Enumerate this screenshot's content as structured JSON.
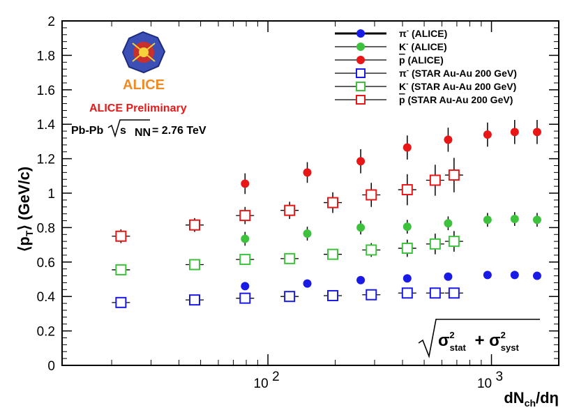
{
  "chart_data": {
    "type": "scatter",
    "title": "",
    "ylabel": "⟨p_T⟩ (GeV/c)",
    "xlabel": "dN_ch/dη",
    "xscale": "log",
    "xlim": [
      12,
      2000
    ],
    "ylim": [
      0,
      2
    ],
    "yticks": [
      0,
      0.2,
      0.4,
      0.6,
      0.8,
      1,
      1.2,
      1.4,
      1.6,
      1.8,
      2
    ],
    "ytick_labels": [
      "0",
      "0.2",
      "0.4",
      "0.6",
      "0.8",
      "1",
      "1.2",
      "1.4",
      "1.6",
      "1.8",
      "2"
    ],
    "xtick_labels": [
      {
        "value": 100,
        "base": "10",
        "exp": "2"
      },
      {
        "value": 1000,
        "base": "10",
        "exp": "3"
      }
    ],
    "series": [
      {
        "name": "π⁻ (ALICE)",
        "label_main": "π",
        "label_sup": "-",
        "label_rest": " (ALICE)",
        "marker": "filled-circle",
        "color": "#1a1ae6",
        "x": [
          79,
          150,
          260,
          420,
          640,
          960,
          1270,
          1600
        ],
        "y": [
          0.46,
          0.475,
          0.495,
          0.505,
          0.515,
          0.525,
          0.525,
          0.52
        ],
        "err": [
          0.02,
          0.02,
          0.02,
          0.02,
          0.02,
          0.02,
          0.02,
          0.02
        ]
      },
      {
        "name": "K⁻ (ALICE)",
        "label_main": "K",
        "label_sup": "-",
        "label_rest": " (ALICE)",
        "marker": "filled-circle",
        "color": "#3ec23e",
        "x": [
          79,
          150,
          260,
          420,
          640,
          960,
          1270,
          1600
        ],
        "y": [
          0.735,
          0.765,
          0.8,
          0.805,
          0.825,
          0.845,
          0.85,
          0.845
        ],
        "err": [
          0.04,
          0.04,
          0.04,
          0.04,
          0.04,
          0.04,
          0.04,
          0.04
        ]
      },
      {
        "name": "p̄ (ALICE)",
        "label_main": "p",
        "label_sup": "",
        "label_rest": " (ALICE)",
        "marker": "filled-circle",
        "color": "#e81616",
        "x": [
          79,
          150,
          260,
          420,
          640,
          960,
          1270,
          1600
        ],
        "y": [
          1.055,
          1.12,
          1.185,
          1.265,
          1.31,
          1.34,
          1.355,
          1.355
        ],
        "err": [
          0.06,
          0.06,
          0.07,
          0.07,
          0.07,
          0.07,
          0.07,
          0.07
        ]
      },
      {
        "name": "π⁻ (STAR Au-Au 200 GeV)",
        "label_main": "π",
        "label_sup": "-",
        "label_rest": " (STAR Au-Au 200 GeV)",
        "marker": "open-square",
        "color": "#1a1ae6",
        "x": [
          22,
          47,
          79,
          125,
          195,
          290,
          420,
          560,
          680
        ],
        "y": [
          0.365,
          0.38,
          0.39,
          0.4,
          0.405,
          0.41,
          0.42,
          0.42,
          0.42
        ],
        "err": [
          0.01,
          0.01,
          0.01,
          0.01,
          0.01,
          0.01,
          0.01,
          0.01,
          0.01
        ]
      },
      {
        "name": "K⁻ (STAR Au-Au 200 GeV)",
        "label_main": "K",
        "label_sup": "-",
        "label_rest": " (STAR Au-Au 200 GeV)",
        "marker": "open-square",
        "color": "#3ec23e",
        "x": [
          22,
          47,
          79,
          125,
          195,
          290,
          420,
          560,
          680
        ],
        "y": [
          0.555,
          0.585,
          0.615,
          0.62,
          0.645,
          0.67,
          0.68,
          0.705,
          0.72
        ],
        "err": [
          0.03,
          0.03,
          0.03,
          0.03,
          0.03,
          0.04,
          0.05,
          0.06,
          0.06
        ]
      },
      {
        "name": "p̄ (STAR Au-Au 200 GeV)",
        "label_main": "p",
        "label_sup": "",
        "label_rest": " (STAR Au-Au 200 GeV)",
        "marker": "open-square",
        "color": "#e81616",
        "x": [
          22,
          47,
          79,
          125,
          195,
          290,
          420,
          560,
          680
        ],
        "y": [
          0.75,
          0.815,
          0.87,
          0.9,
          0.945,
          0.99,
          1.02,
          1.075,
          1.105
        ],
        "err": [
          0.04,
          0.04,
          0.05,
          0.05,
          0.06,
          0.07,
          0.09,
          0.09,
          0.1
        ]
      }
    ],
    "annotations": {
      "logo_text": "ALICE",
      "preliminary": "ALICE Preliminary",
      "system": "Pb-Pb",
      "sqrt_s_sub": "NN",
      "energy": "= 2.76 TeV",
      "uncertainty_label": "σ²stat + σ²syst"
    },
    "legend_position": "top-right"
  }
}
